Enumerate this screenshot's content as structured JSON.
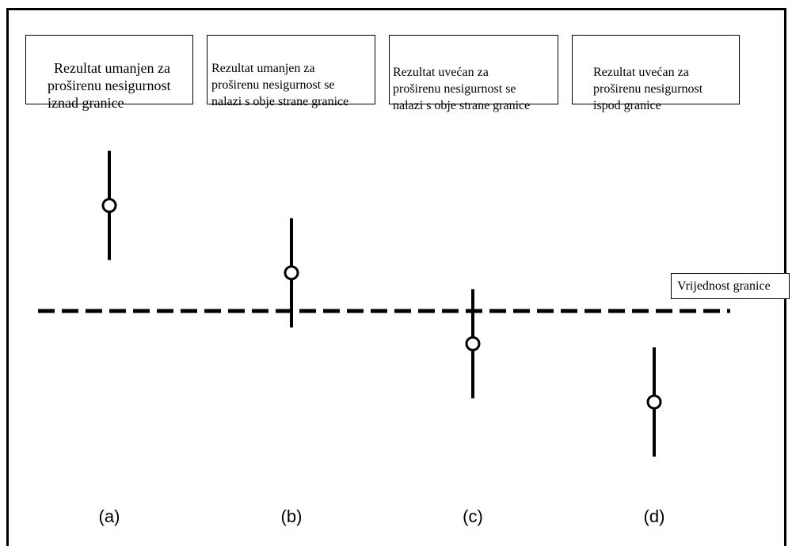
{
  "cases": [
    {
      "id": "a",
      "label": "(a)",
      "description": "Rezultat umanjen za\nproširenu nesigurnost\niznad granice",
      "result": 0.58,
      "uncertainty": 0.3
    },
    {
      "id": "b",
      "label": "(b)",
      "description": "Rezultat umanjen za\nproširenu nesigurnost se\nnalazi s obje strane granice",
      "result": 0.21,
      "uncertainty": 0.3
    },
    {
      "id": "c",
      "label": "(c)",
      "description": "Rezultat uvećan za\nproširenu nesigurnost se\nnalazi s obje strane granice",
      "result": -0.18,
      "uncertainty": 0.3
    },
    {
      "id": "d",
      "label": "(d)",
      "description": "Rezultat uvećan za\nproširenu nesigurnost\nispod granice",
      "result": -0.5,
      "uncertainty": 0.3
    }
  ],
  "limit": {
    "label": "Vrijednost granice",
    "value": 0.0,
    "style": "dashed"
  },
  "colors": {
    "line": "#000000",
    "marker_fill": "#ffffff",
    "background": "#ffffff"
  }
}
